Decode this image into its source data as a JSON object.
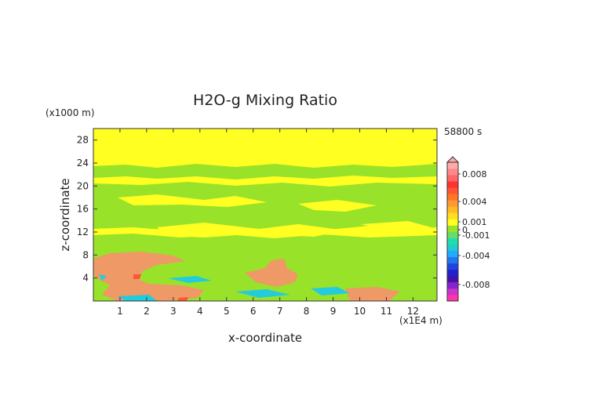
{
  "chart_data": {
    "type": "heatmap",
    "title": "H2O-g Mixing Ratio",
    "xlabel": "x-coordinate",
    "ylabel": "z-coordinate",
    "x_scale_note": "(x1E4 m)",
    "y_scale_note": "(x1000 m)",
    "time_label": "58800 s",
    "xlim": [
      0,
      12.9
    ],
    "ylim": [
      0,
      30
    ],
    "x_ticks": [
      1,
      2,
      3,
      4,
      5,
      6,
      7,
      8,
      9,
      10,
      11,
      12
    ],
    "y_ticks": [
      4,
      8,
      12,
      16,
      20,
      24,
      28
    ],
    "colorbar": {
      "tick_labels": [
        "0.008",
        "0.004",
        "0.001",
        "0",
        "-0.001",
        "-0.004",
        "-0.008"
      ],
      "tick_values": [
        0.008,
        0.004,
        0.001,
        0,
        -0.001,
        -0.004,
        -0.008
      ],
      "range": [
        -0.01,
        0.01
      ],
      "colors": [
        "#ff33aa",
        "#cc33cc",
        "#8822cc",
        "#4411aa",
        "#2222cc",
        "#2244dd",
        "#2277ee",
        "#22aaff",
        "#22cccc",
        "#22ddaa",
        "#66dd66",
        "#99e22a",
        "#ffff22",
        "#ffdd22",
        "#ffbb22",
        "#ff9933",
        "#ff7722",
        "#ff5533",
        "#ff3333",
        "#ff6666",
        "#ff8888",
        "#ffaaaa"
      ]
    },
    "regions": [
      {
        "level": "yellow",
        "color": "#ffff22",
        "desc": "background"
      },
      {
        "level": "green",
        "color": "#99e22a"
      },
      {
        "level": "orange",
        "color": "#ee9966"
      },
      {
        "level": "cyan",
        "color": "#22ccdd"
      }
    ]
  }
}
